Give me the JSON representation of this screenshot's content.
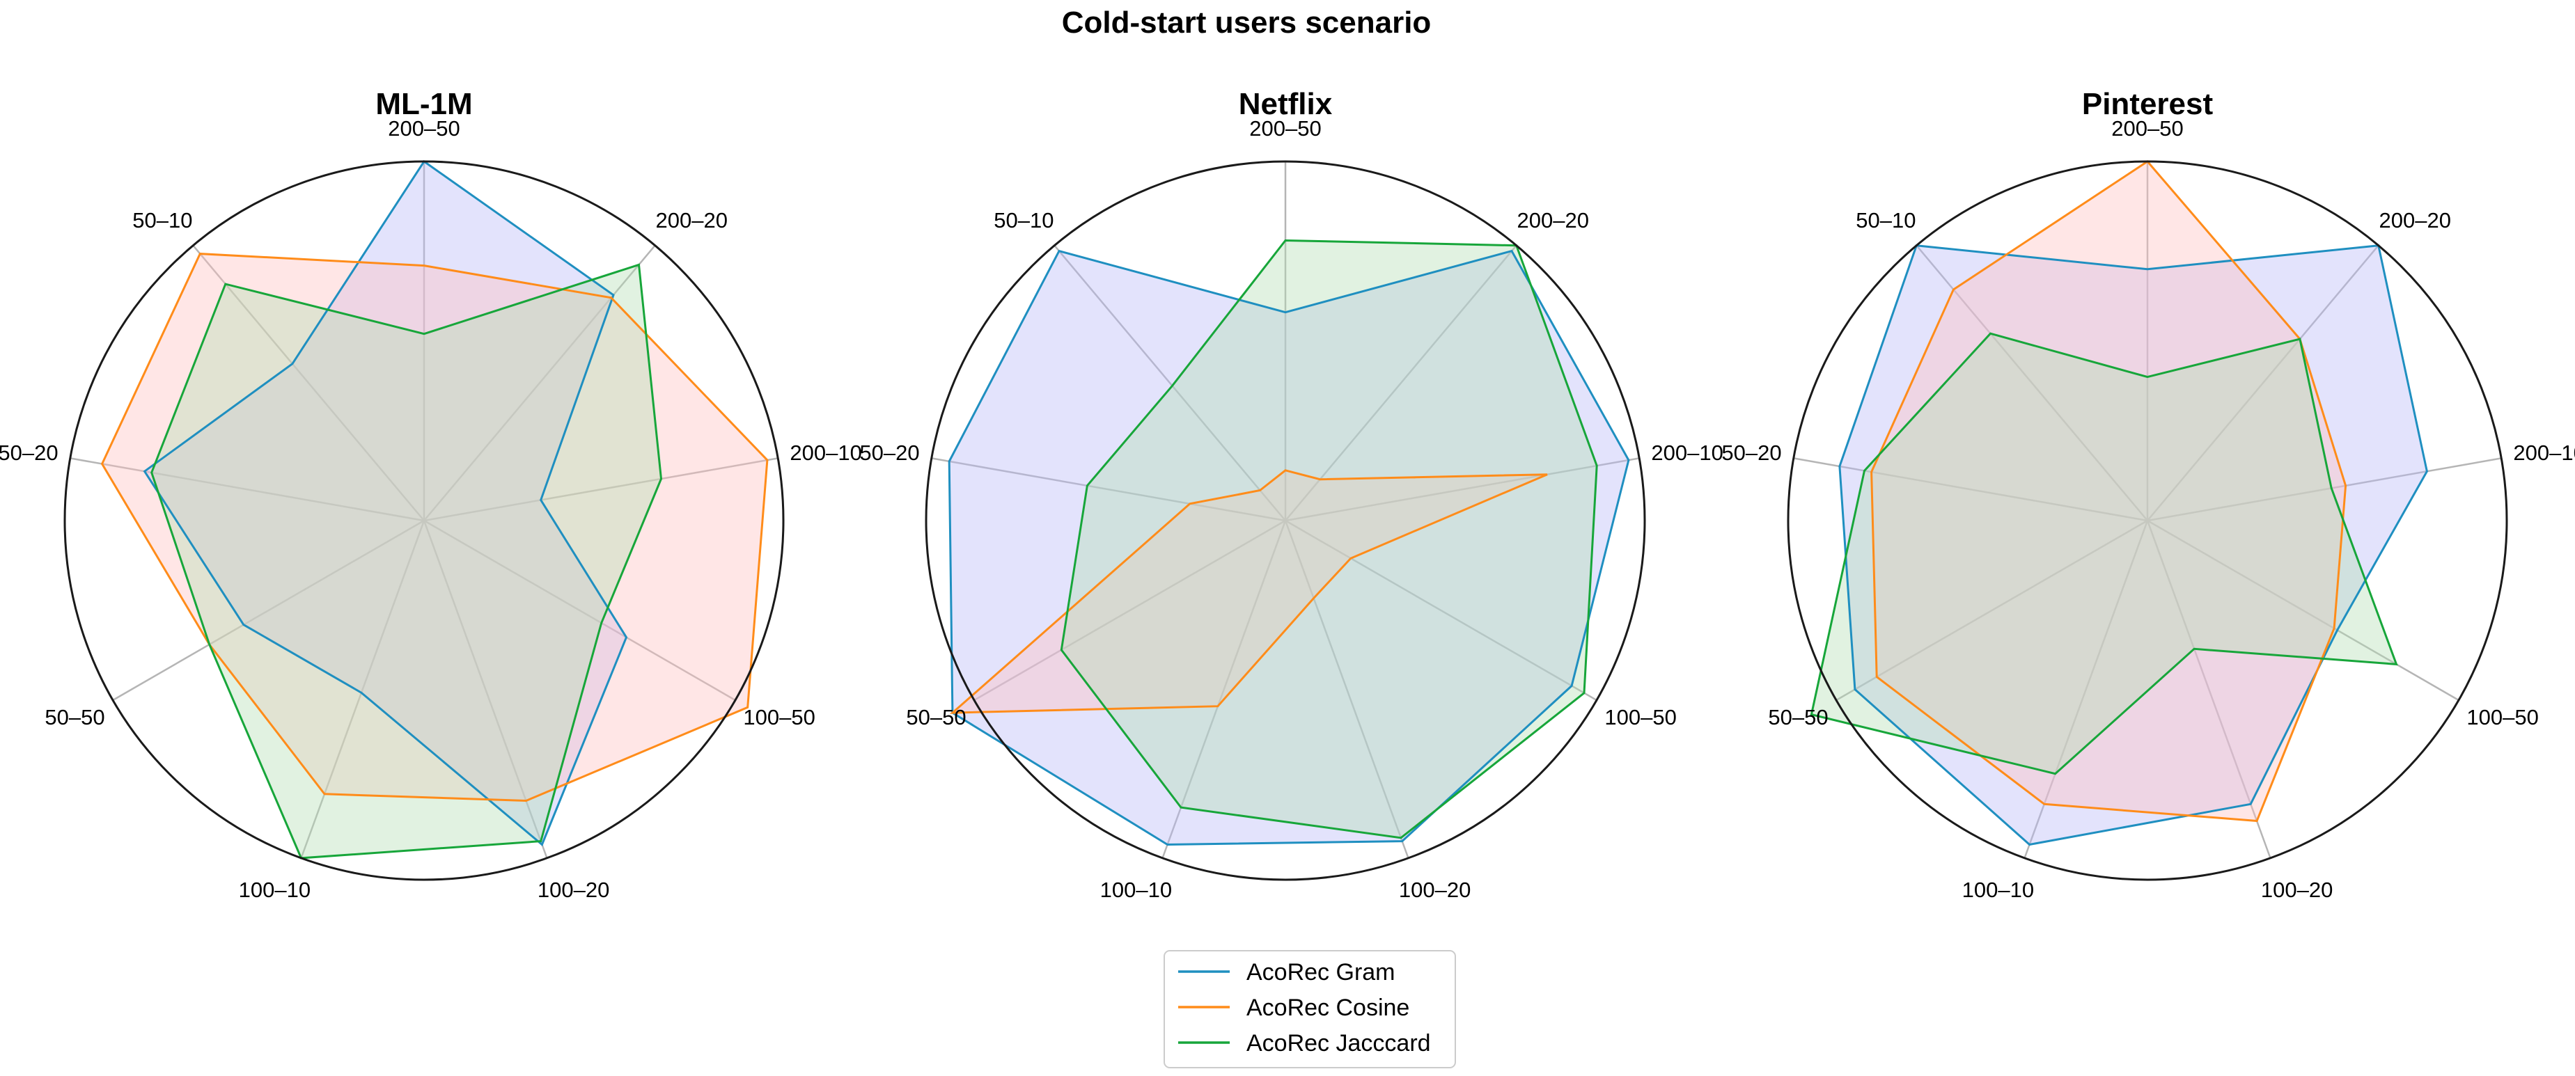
{
  "chart_data": {
    "type": "radar",
    "title": "Cold-start users scenario",
    "axes": [
      "200–50",
      "200–20",
      "200–10",
      "100–50",
      "100–20",
      "100–10",
      "50–50",
      "50–20",
      "50–10"
    ],
    "legend_placement": "bottom-center",
    "grid": true,
    "series_styles": [
      {
        "name": "AcoRec Gram",
        "line_color": "#1f8fc0",
        "fill_color": "#b8b8f8"
      },
      {
        "name": "AcoRec Cosine",
        "line_color": "#ff8c1a",
        "fill_color": "#ffc0c0"
      },
      {
        "name": "AcoRec Jacccard",
        "line_color": "#17a63a",
        "fill_color": "#b4dfb4"
      }
    ],
    "panels": [
      {
        "title": "ML-1M",
        "rmax": 1.0,
        "series": [
          {
            "name": "AcoRec Gram",
            "values": [
              1.0,
              0.82,
              0.33,
              0.65,
              0.96,
              0.51,
              0.58,
              0.79,
              0.57
            ]
          },
          {
            "name": "AcoRec Cosine",
            "values": [
              0.71,
              0.81,
              0.97,
              1.04,
              0.83,
              0.81,
              0.69,
              0.91,
              0.97
            ]
          },
          {
            "name": "AcoRec Jacccard",
            "values": [
              0.52,
              0.93,
              0.67,
              0.57,
              0.95,
              1.0,
              0.69,
              0.77,
              0.86
            ]
          }
        ]
      },
      {
        "title": "Netflix",
        "rmax": 1.0,
        "series": [
          {
            "name": "AcoRec Gram",
            "values": [
              0.58,
              0.98,
              0.97,
              0.92,
              0.95,
              0.96,
              1.07,
              0.95,
              0.98
            ]
          },
          {
            "name": "AcoRec Cosine",
            "values": [
              0.14,
              0.15,
              0.74,
              0.21,
              0.23,
              0.55,
              1.07,
              0.27,
              0.11
            ]
          },
          {
            "name": "AcoRec Jacccard",
            "values": [
              0.78,
              1.0,
              0.88,
              0.96,
              0.94,
              0.85,
              0.72,
              0.56,
              0.49
            ]
          }
        ]
      },
      {
        "title": "Pinterest",
        "rmax": 1.0,
        "series": [
          {
            "name": "AcoRec Gram",
            "values": [
              0.7,
              1.0,
              0.79,
              0.61,
              0.84,
              0.96,
              0.94,
              0.87,
              1.0
            ]
          },
          {
            "name": "AcoRec Cosine",
            "values": [
              1.0,
              0.66,
              0.56,
              0.6,
              0.89,
              0.84,
              0.87,
              0.78,
              0.84
            ]
          },
          {
            "name": "AcoRec Jacccard",
            "values": [
              0.4,
              0.66,
              0.52,
              0.8,
              0.38,
              0.75,
              1.08,
              0.8,
              0.68
            ]
          }
        ]
      }
    ]
  }
}
